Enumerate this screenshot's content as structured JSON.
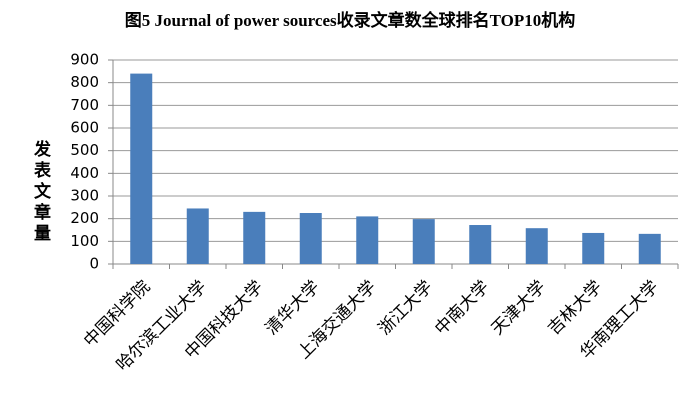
{
  "chart_data": {
    "type": "bar",
    "title": "图5 Journal of power sources收录文章数全球排名TOP10机构",
    "y_label": "发表文章量",
    "categories": [
      "中国科学院",
      "哈尔滨工业大学",
      "中国科技大学",
      "清华大学",
      "上海交通大学",
      "浙江大学",
      "中南大学",
      "天津大学",
      "吉林大学",
      "华南理工大学"
    ],
    "values": [
      840,
      245,
      230,
      225,
      210,
      198,
      172,
      158,
      137,
      133
    ],
    "color": "#4a7ebb",
    "ylim": [
      0,
      900
    ],
    "yticks": [
      0,
      100,
      200,
      300,
      400,
      500,
      600,
      700,
      800,
      900
    ],
    "grid": true
  }
}
